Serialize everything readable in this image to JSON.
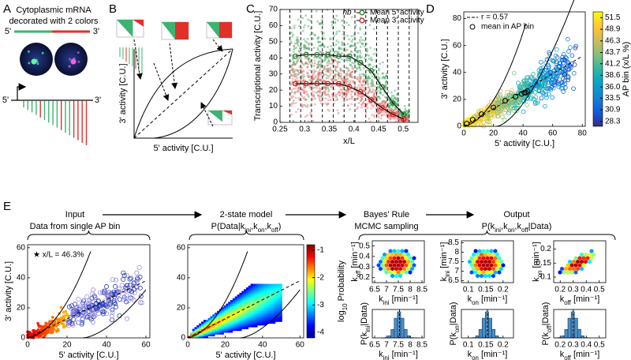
{
  "panel_labels": {
    "a": "A",
    "b": "B",
    "c": "C",
    "d": "D",
    "e": "E"
  },
  "a": {
    "title": "Cytoplasmic mRNA",
    "subtitle": "decorated with 2 colors",
    "mrna_5": "5'",
    "mrna_3": "3'",
    "gene_5": "5'",
    "gene_3": "3'"
  },
  "b": {
    "xlabel": "5' activity [C.U.]",
    "ylabel": "3' activity [C.U.]"
  },
  "c": {
    "xlabel": "x/L",
    "ylabel": "Transcriptional activity [C.U.]",
    "gene": "hb",
    "marker": "*",
    "marker_x": 0.463,
    "xlim": [
      0.25,
      0.53
    ],
    "xticks": [
      0.25,
      0.3,
      0.35,
      0.4,
      0.45,
      0.5
    ],
    "ylim": [
      0,
      70
    ],
    "yticks": [
      0,
      10,
      20,
      30,
      40,
      50,
      60,
      70
    ],
    "bin_edges": [
      0.27,
      0.292,
      0.314,
      0.336,
      0.358,
      0.38,
      0.402,
      0.424,
      0.446,
      0.468,
      0.49,
      0.512
    ],
    "series": [
      {
        "name": "Mean 5' activity",
        "color": "#2e7d32",
        "x": [
          0.281,
          0.303,
          0.325,
          0.347,
          0.369,
          0.391,
          0.413,
          0.435,
          0.457,
          0.479,
          0.501
        ],
        "values": [
          41,
          42,
          42,
          42,
          41,
          41,
          37,
          32,
          22,
          12,
          5
        ]
      },
      {
        "name": "Mean 3' activity",
        "color": "#c62828",
        "x": [
          0.281,
          0.303,
          0.325,
          0.347,
          0.369,
          0.391,
          0.413,
          0.435,
          0.457,
          0.479,
          0.501
        ],
        "values": [
          24,
          24,
          24,
          24,
          24,
          22,
          19,
          14,
          9,
          5,
          2
        ]
      }
    ]
  },
  "d": {
    "xlabel": "5' activity [C.U.]",
    "ylabel": "3' activity [C.U.]",
    "xlim": [
      0,
      82
    ],
    "xticks": [
      0,
      20,
      40,
      60,
      80
    ],
    "ylim": [
      0,
      85
    ],
    "yticks": [
      0,
      20,
      40,
      60,
      80
    ],
    "fit_label": "r = 0.57",
    "means_label": "mean in AP bin",
    "means": {
      "x": [
        2,
        6,
        12,
        20,
        28,
        35,
        39,
        41,
        42,
        43
      ],
      "values": [
        2,
        5,
        9,
        14,
        19,
        22,
        24,
        25,
        25,
        26
      ]
    },
    "colorbar": {
      "label": "AP bin (x/L %)",
      "clim": [
        27.2,
        52.8
      ],
      "ticks": [
        28.3,
        30.9,
        33.5,
        {
          "value": 36,
          "label": "36.0"
        },
        38.6,
        41.2,
        43.7,
        46.3,
        48.9,
        51.5
      ]
    }
  },
  "e": {
    "steps": [
      {
        "title": "Input",
        "subtitle": "Data from single AP bin"
      },
      {
        "title": "2-state model",
        "subtitle": [
          "P(Data|k",
          "ini",
          ",k",
          "on",
          ",k",
          "off",
          ")"
        ]
      },
      {
        "title": "Bayes' Rule",
        "subtitle": "MCMC sampling"
      },
      {
        "title": "Output",
        "subtitle": [
          "P(k",
          "ini",
          ",k",
          "on",
          ",k",
          "off",
          "|Data)"
        ]
      }
    ],
    "data_plot": {
      "xlabel": "5' activity [C.U.]",
      "ylabel": "3' activity [C.U.]",
      "annotation": "★ x/L = 46.3%",
      "xlim": [
        0,
        62
      ],
      "xticks": [
        0,
        20,
        40,
        60
      ],
      "ylim": [
        0,
        62
      ],
      "yticks": [
        0,
        20,
        40,
        60
      ]
    },
    "model_plot": {
      "xlabel": "5' activity [C.U.]",
      "xlim": [
        0,
        62
      ],
      "xticks": [
        0,
        20,
        40,
        60
      ],
      "ylim": [
        0,
        62
      ],
      "yticks": [
        0,
        20,
        40,
        60
      ],
      "colorbar": {
        "label": [
          "log",
          "10",
          " Probability"
        ],
        "clim": [
          -4.2,
          -0.8
        ],
        "ticks": [
          -1,
          -2,
          -3,
          -4
        ]
      }
    },
    "posteriors": [
      {
        "xlabel": [
          "k",
          "ini",
          " [min⁻¹]"
        ],
        "ylabel": [
          "k",
          "off",
          " [min⁻¹]"
        ],
        "xlim": [
          6.4,
          8.6
        ],
        "xticks": [
          6.5,
          7,
          7.5,
          8,
          8.5
        ],
        "ylim": [
          0.15,
          0.55
        ],
        "yticks": [
          0.2,
          0.3,
          0.4,
          0.5
        ]
      },
      {
        "xlabel": [
          "k",
          "on",
          " [min⁻¹]"
        ],
        "ylabel": [
          "k",
          "ini",
          " [min⁻¹]"
        ],
        "xlim": [
          0.08,
          0.23
        ],
        "xticks": [
          0.1,
          0.15,
          0.2
        ],
        "ylim": [
          6.4,
          8.6
        ],
        "yticks": [
          6.5,
          7,
          7.5,
          8,
          8.5
        ]
      },
      {
        "xlabel": [
          "k",
          "off",
          " [min⁻¹]"
        ],
        "ylabel": [
          "k",
          "on",
          " [min⁻¹]"
        ],
        "xlim": [
          0.15,
          0.55
        ],
        "xticks": [
          0.2,
          0.3,
          0.4,
          0.5
        ],
        "ylim": [
          0.08,
          0.23
        ],
        "yticks": [
          0.1,
          0.15,
          0.2
        ]
      }
    ],
    "marginals": [
      {
        "xlabel": [
          "k",
          "ini",
          " [min⁻¹]"
        ],
        "ylabel": [
          "P(k",
          "ini",
          "|Data)"
        ],
        "xlim": [
          6.4,
          8.6
        ],
        "xticks": [
          6.5,
          7,
          7.5,
          8,
          8.5
        ],
        "mean": 7.55
      },
      {
        "xlabel": [
          "k",
          "on",
          " [min⁻¹]"
        ],
        "ylabel": [
          "P(k",
          "on",
          "|Data)"
        ],
        "xlim": [
          0.08,
          0.23
        ],
        "xticks": [
          0.1,
          0.15,
          0.2
        ],
        "mean": 0.155
      },
      {
        "xlabel": [
          "k",
          "off",
          " [min⁻¹]"
        ],
        "ylabel": [
          "P(k",
          "off",
          "|Data)"
        ],
        "xlim": [
          0.15,
          0.55
        ],
        "xticks": [
          0.2,
          0.3,
          0.4,
          0.5
        ],
        "mean": 0.3
      }
    ]
  }
}
